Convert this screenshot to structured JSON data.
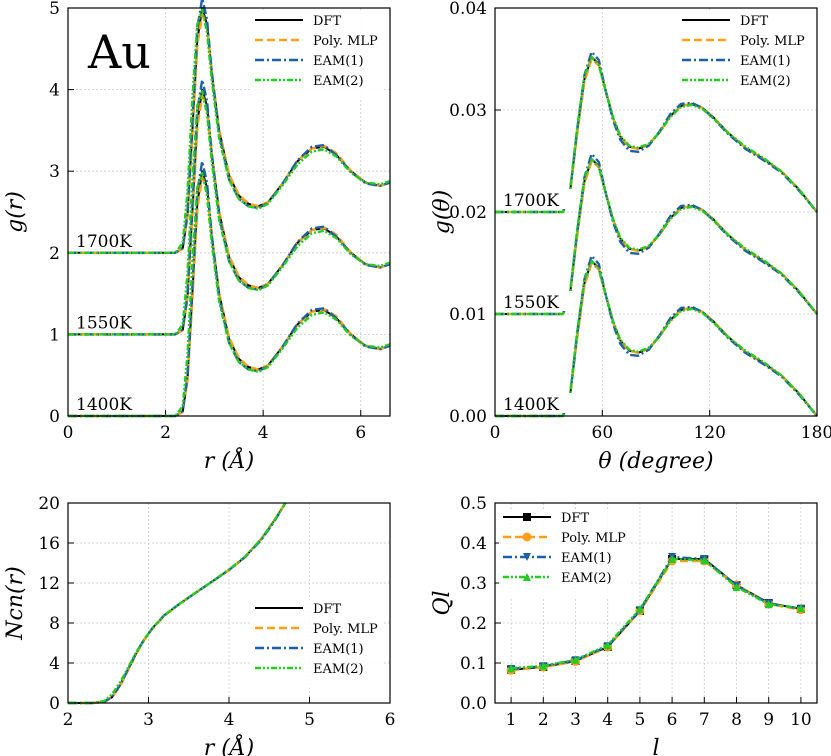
{
  "colors": {
    "dft": "#000000",
    "poly": "#ff9f1a",
    "eam1": "#1f5faa",
    "eam2": "#22cc22",
    "grid": "#c8c8c8"
  },
  "chart_data": [
    {
      "id": "rdf",
      "type": "line",
      "title": "",
      "element_label": "Au",
      "xlabel": "r (Å)",
      "ylabel": "g(r)",
      "xlim": [
        0,
        6.6
      ],
      "ylim": [
        0,
        5
      ],
      "xticks": [
        "0",
        "2",
        "4",
        "6"
      ],
      "yticks": [
        "0",
        "1",
        "2",
        "3",
        "4",
        "5"
      ],
      "grid": true,
      "legend_position": "top-right",
      "legend": [
        "DFT",
        "Poly. MLP",
        "EAM(1)",
        "EAM(2)"
      ],
      "temperatures": [
        "1400K",
        "1550K",
        "1700K"
      ],
      "offsets": [
        0,
        1,
        2
      ],
      "x": [
        0,
        2.2,
        2.35,
        2.45,
        2.55,
        2.65,
        2.75,
        2.85,
        2.95,
        3.1,
        3.3,
        3.5,
        3.7,
        3.9,
        4.1,
        4.4,
        4.7,
        5.0,
        5.25,
        5.5,
        5.8,
        6.1,
        6.4,
        6.6
      ],
      "series": [
        {
          "name": "DFT",
          "values": [
            0,
            0,
            0.05,
            0.45,
            1.5,
            2.6,
            3.0,
            2.8,
            2.2,
            1.5,
            0.95,
            0.7,
            0.6,
            0.57,
            0.62,
            0.85,
            1.12,
            1.28,
            1.3,
            1.2,
            1.0,
            0.86,
            0.82,
            0.86
          ]
        },
        {
          "name": "Poly. MLP",
          "values": [
            0,
            0,
            0.05,
            0.45,
            1.45,
            2.55,
            2.92,
            2.78,
            2.2,
            1.5,
            0.96,
            0.71,
            0.6,
            0.57,
            0.62,
            0.85,
            1.12,
            1.28,
            1.31,
            1.22,
            1.0,
            0.86,
            0.82,
            0.86
          ]
        },
        {
          "name": "EAM(1)",
          "values": [
            0,
            0,
            0.06,
            0.5,
            1.6,
            2.75,
            3.12,
            2.86,
            2.2,
            1.45,
            0.9,
            0.66,
            0.57,
            0.55,
            0.61,
            0.85,
            1.13,
            1.3,
            1.32,
            1.2,
            0.99,
            0.85,
            0.82,
            0.86
          ]
        },
        {
          "name": "EAM(2)",
          "values": [
            0,
            0,
            0.12,
            0.75,
            1.9,
            2.8,
            2.98,
            2.7,
            2.1,
            1.4,
            0.9,
            0.66,
            0.57,
            0.54,
            0.6,
            0.83,
            1.08,
            1.24,
            1.27,
            1.18,
            0.98,
            0.86,
            0.84,
            0.88
          ]
        }
      ]
    },
    {
      "id": "adf",
      "type": "line",
      "xlabel": "θ (degree)",
      "ylabel": "g(θ)",
      "xlim": [
        0,
        180
      ],
      "ylim": [
        0,
        0.04
      ],
      "xticks": [
        "0",
        "60",
        "120",
        "180"
      ],
      "yticks": [
        "0.00",
        "0.01",
        "0.02",
        "0.03",
        "0.04"
      ],
      "grid": true,
      "legend_position": "top-right",
      "legend": [
        "DFT",
        "Poly. MLP",
        "EAM(1)",
        "EAM(2)"
      ],
      "temperatures": [
        "1400K",
        "1550K",
        "1700K"
      ],
      "offsets": [
        0,
        0.01,
        0.02
      ],
      "x": [
        0,
        38,
        42,
        46,
        50,
        54,
        58,
        62,
        66,
        70,
        75,
        80,
        86,
        92,
        98,
        104,
        110,
        116,
        122,
        130,
        140,
        150,
        160,
        170,
        180
      ],
      "series": [
        {
          "name": "DFT",
          "values": [
            0,
            0,
            0.002,
            0.008,
            0.013,
            0.0152,
            0.0145,
            0.0118,
            0.0092,
            0.0074,
            0.0064,
            0.0062,
            0.0066,
            0.0078,
            0.0094,
            0.0104,
            0.0106,
            0.0102,
            0.0093,
            0.0078,
            0.0063,
            0.0052,
            0.004,
            0.0022,
            0
          ]
        },
        {
          "name": "Poly. MLP",
          "values": [
            0,
            0,
            0.002,
            0.0078,
            0.0128,
            0.015,
            0.0144,
            0.0118,
            0.0092,
            0.0074,
            0.0064,
            0.0062,
            0.0066,
            0.0078,
            0.0094,
            0.0104,
            0.0106,
            0.0102,
            0.0093,
            0.0078,
            0.0063,
            0.0052,
            0.004,
            0.0022,
            0
          ]
        },
        {
          "name": "EAM(1)",
          "values": [
            0,
            0,
            0.002,
            0.0082,
            0.0134,
            0.0157,
            0.0149,
            0.0118,
            0.009,
            0.0071,
            0.006,
            0.0059,
            0.0065,
            0.0079,
            0.0096,
            0.0106,
            0.0107,
            0.0102,
            0.0092,
            0.0077,
            0.0062,
            0.0051,
            0.0039,
            0.0021,
            0
          ]
        },
        {
          "name": "EAM(2)",
          "values": [
            0,
            0,
            0.0022,
            0.0084,
            0.0133,
            0.0152,
            0.0144,
            0.0118,
            0.0093,
            0.0075,
            0.0065,
            0.0063,
            0.0067,
            0.0078,
            0.0093,
            0.0103,
            0.0105,
            0.0101,
            0.0092,
            0.0078,
            0.0064,
            0.0053,
            0.004,
            0.0022,
            0
          ]
        }
      ]
    },
    {
      "id": "ncn",
      "type": "line",
      "xlabel": "r (Å)",
      "ylabel": "Ncn(r)",
      "xlim": [
        2,
        6
      ],
      "ylim": [
        0,
        20
      ],
      "xticks": [
        "2",
        "3",
        "4",
        "5",
        "6"
      ],
      "yticks": [
        "0",
        "4",
        "8",
        "12",
        "16",
        "20"
      ],
      "grid": true,
      "legend_position": "lower-right",
      "legend": [
        "DFT",
        "Poly. MLP",
        "EAM(1)",
        "EAM(2)"
      ],
      "x": [
        2.0,
        2.3,
        2.45,
        2.55,
        2.65,
        2.75,
        2.85,
        2.95,
        3.05,
        3.2,
        3.4,
        3.6,
        3.8,
        4.0,
        4.2,
        4.4,
        4.55,
        4.7
      ],
      "series": [
        {
          "name": "DFT",
          "values": [
            0,
            0,
            0.1,
            0.6,
            1.8,
            3.4,
            5.0,
            6.4,
            7.5,
            8.8,
            10.0,
            11.1,
            12.2,
            13.3,
            14.6,
            16.4,
            18.1,
            20.0
          ]
        },
        {
          "name": "Poly. MLP",
          "values": [
            0,
            0,
            0.1,
            0.6,
            1.75,
            3.35,
            4.95,
            6.35,
            7.45,
            8.75,
            10.0,
            11.1,
            12.2,
            13.3,
            14.6,
            16.4,
            18.1,
            20.0
          ]
        },
        {
          "name": "EAM(1)",
          "values": [
            0,
            0,
            0.12,
            0.65,
            1.85,
            3.45,
            5.05,
            6.4,
            7.5,
            8.8,
            10.0,
            11.1,
            12.2,
            13.3,
            14.6,
            16.3,
            18.0,
            20.0
          ]
        },
        {
          "name": "EAM(2)",
          "values": [
            0,
            0,
            0.2,
            0.9,
            2.1,
            3.6,
            5.1,
            6.4,
            7.5,
            8.8,
            10.0,
            11.1,
            12.2,
            13.35,
            14.65,
            16.4,
            18.1,
            20.0
          ]
        }
      ]
    },
    {
      "id": "ql",
      "type": "line",
      "xlabel": "l",
      "ylabel": "Ql",
      "xlim": [
        0.5,
        10.5
      ],
      "ylim": [
        0,
        0.5
      ],
      "xticks": [
        "1",
        "2",
        "3",
        "4",
        "5",
        "6",
        "7",
        "8",
        "9",
        "10"
      ],
      "yticks": [
        "0.0",
        "0.1",
        "0.2",
        "0.3",
        "0.4",
        "0.5"
      ],
      "grid": true,
      "legend_position": "top-left",
      "legend": [
        "DFT",
        "Poly. MLP",
        "EAM(1)",
        "EAM(2)"
      ],
      "x": [
        1,
        2,
        3,
        4,
        5,
        6,
        7,
        8,
        9,
        10
      ],
      "series": [
        {
          "name": "DFT",
          "marker": "square",
          "values": [
            0.083,
            0.09,
            0.105,
            0.14,
            0.23,
            0.36,
            0.36,
            0.295,
            0.25,
            0.235
          ]
        },
        {
          "name": "Poly. MLP",
          "marker": "circle",
          "values": [
            0.082,
            0.09,
            0.104,
            0.14,
            0.23,
            0.355,
            0.355,
            0.295,
            0.248,
            0.233
          ]
        },
        {
          "name": "EAM(1)",
          "marker": "triangle-down",
          "values": [
            0.085,
            0.092,
            0.107,
            0.142,
            0.232,
            0.365,
            0.36,
            0.293,
            0.249,
            0.236
          ]
        },
        {
          "name": "EAM(2)",
          "marker": "triangle-up",
          "values": [
            0.087,
            0.093,
            0.108,
            0.145,
            0.235,
            0.36,
            0.357,
            0.29,
            0.247,
            0.237
          ]
        }
      ]
    }
  ]
}
